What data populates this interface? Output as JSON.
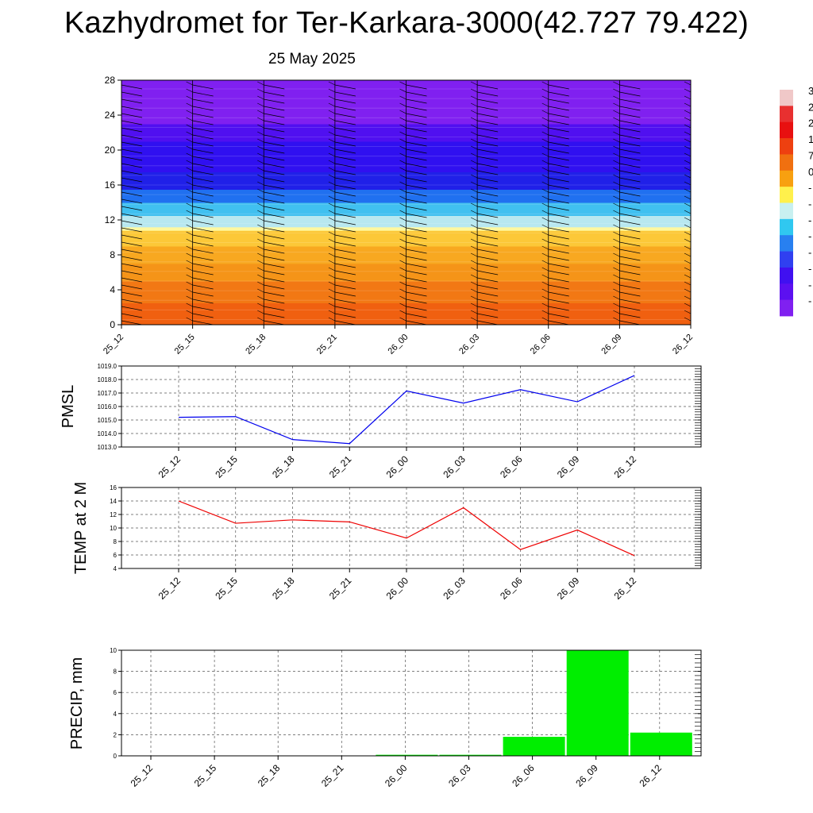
{
  "title": "Kazhydromet for Ter-Karkara-3000(42.727 79.422)",
  "date": "25 May 2025",
  "colors": {
    "pmsl_line": "#0000ee",
    "temp_line": "#ee0000",
    "precip_bar": "#00ee00",
    "grid": "#555555"
  },
  "chart_data": [
    {
      "id": "cross-section",
      "type": "heatmap",
      "categories": [
        "25_12",
        "25_15",
        "25_18",
        "25_21",
        "26_00",
        "26_03",
        "26_06",
        "26_09",
        "26_12"
      ],
      "yticks": [
        "0",
        "4",
        "8",
        "12",
        "16",
        "20",
        "24",
        "28"
      ],
      "ylim": [
        0,
        28
      ],
      "colorbar_labels": [
        "3",
        "2",
        "2",
        "1",
        "7",
        "0",
        "-",
        "-",
        "-",
        "-",
        "-",
        "-",
        "-",
        "-"
      ],
      "colorbar_colors": [
        "#f0c8c8",
        "#e83030",
        "#e81010",
        "#ee4010",
        "#f07010",
        "#f8a010",
        "#fff04c",
        "#c8f0f0",
        "#30c8f0",
        "#2880f0",
        "#3040f0",
        "#4010f0",
        "#5c10f0",
        "#8020f0"
      ],
      "bands": [
        {
          "from": 0,
          "to": 2.5,
          "color": "#f06010"
        },
        {
          "from": 2.5,
          "to": 5,
          "color": "#f27814"
        },
        {
          "from": 5,
          "to": 7,
          "color": "#f59418"
        },
        {
          "from": 7,
          "to": 9,
          "color": "#f8a820"
        },
        {
          "from": 9,
          "to": 10.8,
          "color": "#fcc838"
        },
        {
          "from": 10.8,
          "to": 11.2,
          "color": "#fff8a0"
        },
        {
          "from": 11.2,
          "to": 12.5,
          "color": "#b8e8f0"
        },
        {
          "from": 12.5,
          "to": 14,
          "color": "#40c0f0"
        },
        {
          "from": 14,
          "to": 15.5,
          "color": "#2070f0"
        },
        {
          "from": 15.5,
          "to": 17.5,
          "color": "#2020e8"
        },
        {
          "from": 17.5,
          "to": 21,
          "color": "#3010f0"
        },
        {
          "from": 21,
          "to": 23,
          "color": "#5010f0"
        },
        {
          "from": 23,
          "to": 28,
          "color": "#8020f0"
        }
      ]
    },
    {
      "id": "pmsl",
      "type": "line",
      "ylabel": "PMSL",
      "categories": [
        "25_12",
        "25_15",
        "25_18",
        "25_21",
        "26_00",
        "26_03",
        "26_06",
        "26_09",
        "26_12"
      ],
      "values": [
        1015.2,
        1015.25,
        1013.55,
        1013.25,
        1017.15,
        1016.25,
        1017.25,
        1016.35,
        1018.3
      ],
      "yticks": [
        "1013.0",
        "1014.0",
        "1015.0",
        "1016.0",
        "1017.0",
        "1018.0",
        "1019.0"
      ],
      "ylim": [
        1013,
        1019
      ]
    },
    {
      "id": "temp",
      "type": "line",
      "ylabel": "TEMP at 2 M",
      "categories": [
        "25_12",
        "25_15",
        "25_18",
        "25_21",
        "26_00",
        "26_03",
        "26_06",
        "26_09",
        "26_12"
      ],
      "values": [
        14.0,
        10.7,
        11.2,
        10.9,
        8.5,
        13.0,
        6.8,
        9.7,
        5.9
      ],
      "yticks": [
        "4",
        "6",
        "8",
        "10",
        "12",
        "14",
        "16"
      ],
      "ylim": [
        4,
        16
      ]
    },
    {
      "id": "precip",
      "type": "bar",
      "ylabel": "PRECIP, mm",
      "categories": [
        "25_12",
        "25_15",
        "25_18",
        "25_21",
        "26_00",
        "26_03",
        "26_06",
        "26_09",
        "26_12"
      ],
      "values": [
        0,
        0,
        0,
        0,
        0.1,
        0.1,
        1.8,
        10.0,
        2.2
      ],
      "yticks": [
        "0",
        "2",
        "4",
        "6",
        "8",
        "10"
      ],
      "ylim": [
        0,
        10
      ]
    }
  ]
}
